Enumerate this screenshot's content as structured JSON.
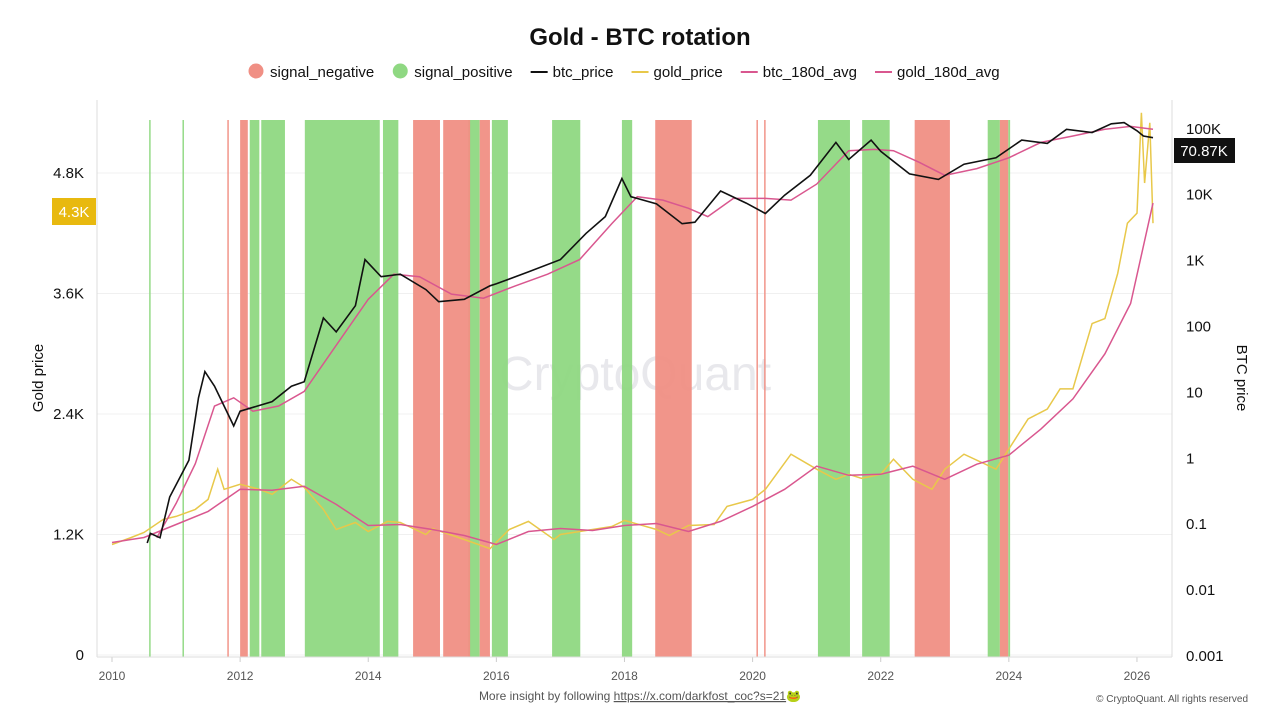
{
  "chart_data": {
    "type": "line",
    "title": "Gold - BTC rotation",
    "legend": [
      {
        "name": "signal_negative",
        "kind": "dot",
        "color": "#f08f84"
      },
      {
        "name": "signal_positive",
        "kind": "dot",
        "color": "#8fd882"
      },
      {
        "name": "btc_price",
        "kind": "line",
        "color": "#111111"
      },
      {
        "name": "gold_price",
        "kind": "line",
        "color": "#e8c84a"
      },
      {
        "name": "btc_180d_avg",
        "kind": "line",
        "color": "#d9578f"
      },
      {
        "name": "gold_180d_avg",
        "kind": "line",
        "color": "#d9578f"
      }
    ],
    "legend_position": "top-center",
    "xlim": [
      2009.8,
      2026.55
    ],
    "x_ticks": [
      "2010",
      "2012",
      "2014",
      "2016",
      "2018",
      "2020",
      "2022",
      "2024",
      "2026"
    ],
    "y_left": {
      "label": "Gold price",
      "range": [
        0,
        5570
      ],
      "ticks": [
        "0",
        "1.2K",
        "2.4K",
        "3.6K",
        "4.8K"
      ],
      "tick_values": [
        0,
        1200,
        2400,
        3600,
        4800
      ]
    },
    "y_right": {
      "label": "BTC price",
      "scale": "log",
      "range": [
        0.001,
        200000
      ],
      "ticks": [
        "0.001",
        "0.01",
        "0.1",
        "1",
        "10",
        "100",
        "1K",
        "10K",
        "100K"
      ],
      "tick_values": [
        0.001,
        0.01,
        0.1,
        1,
        10,
        100,
        1000,
        10000,
        100000
      ]
    },
    "grid": "horizontal",
    "last_values": {
      "btc_price": "70.87K",
      "gold_price": "4.3K"
    },
    "series": {
      "gold_price": [
        [
          2010.0,
          1100
        ],
        [
          2010.3,
          1170
        ],
        [
          2010.5,
          1220
        ],
        [
          2010.8,
          1350
        ],
        [
          2011.0,
          1380
        ],
        [
          2011.3,
          1450
        ],
        [
          2011.5,
          1550
        ],
        [
          2011.65,
          1850
        ],
        [
          2011.75,
          1650
        ],
        [
          2012.0,
          1700
        ],
        [
          2012.3,
          1650
        ],
        [
          2012.5,
          1600
        ],
        [
          2012.8,
          1750
        ],
        [
          2013.0,
          1670
        ],
        [
          2013.3,
          1450
        ],
        [
          2013.5,
          1250
        ],
        [
          2013.8,
          1320
        ],
        [
          2014.0,
          1230
        ],
        [
          2014.3,
          1330
        ],
        [
          2014.5,
          1320
        ],
        [
          2014.9,
          1200
        ],
        [
          2015.0,
          1260
        ],
        [
          2015.5,
          1150
        ],
        [
          2015.9,
          1060
        ],
        [
          2016.2,
          1250
        ],
        [
          2016.5,
          1330
        ],
        [
          2016.9,
          1150
        ],
        [
          2017.0,
          1200
        ],
        [
          2017.5,
          1250
        ],
        [
          2017.8,
          1280
        ],
        [
          2018.0,
          1340
        ],
        [
          2018.5,
          1250
        ],
        [
          2018.7,
          1190
        ],
        [
          2019.0,
          1290
        ],
        [
          2019.4,
          1300
        ],
        [
          2019.6,
          1480
        ],
        [
          2020.0,
          1550
        ],
        [
          2020.2,
          1650
        ],
        [
          2020.6,
          2000
        ],
        [
          2021.0,
          1850
        ],
        [
          2021.3,
          1750
        ],
        [
          2021.5,
          1800
        ],
        [
          2021.7,
          1760
        ],
        [
          2022.0,
          1800
        ],
        [
          2022.2,
          1950
        ],
        [
          2022.5,
          1750
        ],
        [
          2022.8,
          1650
        ],
        [
          2023.0,
          1850
        ],
        [
          2023.3,
          2000
        ],
        [
          2023.8,
          1850
        ],
        [
          2024.0,
          2050
        ],
        [
          2024.3,
          2350
        ],
        [
          2024.6,
          2450
        ],
        [
          2024.8,
          2650
        ],
        [
          2025.0,
          2650
        ],
        [
          2025.3,
          3300
        ],
        [
          2025.5,
          3350
        ],
        [
          2025.7,
          3800
        ],
        [
          2025.85,
          4300
        ],
        [
          2026.0,
          4400
        ],
        [
          2026.07,
          5400
        ],
        [
          2026.12,
          4700
        ],
        [
          2026.2,
          5300
        ],
        [
          2026.25,
          4300
        ]
      ],
      "gold_180d_avg": [
        [
          2010.0,
          1120
        ],
        [
          2010.5,
          1170
        ],
        [
          2011.0,
          1300
        ],
        [
          2011.5,
          1430
        ],
        [
          2012.0,
          1650
        ],
        [
          2012.5,
          1640
        ],
        [
          2013.0,
          1680
        ],
        [
          2013.5,
          1500
        ],
        [
          2014.0,
          1290
        ],
        [
          2014.5,
          1300
        ],
        [
          2015.0,
          1250
        ],
        [
          2015.5,
          1190
        ],
        [
          2016.0,
          1100
        ],
        [
          2016.5,
          1230
        ],
        [
          2017.0,
          1260
        ],
        [
          2017.5,
          1240
        ],
        [
          2018.0,
          1290
        ],
        [
          2018.5,
          1310
        ],
        [
          2019.0,
          1230
        ],
        [
          2019.5,
          1330
        ],
        [
          2020.0,
          1480
        ],
        [
          2020.5,
          1650
        ],
        [
          2021.0,
          1880
        ],
        [
          2021.5,
          1790
        ],
        [
          2022.0,
          1800
        ],
        [
          2022.5,
          1880
        ],
        [
          2023.0,
          1750
        ],
        [
          2023.5,
          1900
        ],
        [
          2024.0,
          1990
        ],
        [
          2024.5,
          2250
        ],
        [
          2025.0,
          2550
        ],
        [
          2025.5,
          3000
        ],
        [
          2025.9,
          3500
        ],
        [
          2026.25,
          4500
        ]
      ],
      "btc_price": [
        [
          2010.55,
          0.05
        ],
        [
          2010.6,
          0.07
        ],
        [
          2010.75,
          0.06
        ],
        [
          2010.9,
          0.25
        ],
        [
          2011.2,
          0.9
        ],
        [
          2011.35,
          8
        ],
        [
          2011.45,
          20
        ],
        [
          2011.6,
          12
        ],
        [
          2011.9,
          3
        ],
        [
          2012.0,
          5
        ],
        [
          2012.5,
          7
        ],
        [
          2012.8,
          12
        ],
        [
          2013.0,
          14
        ],
        [
          2013.3,
          130
        ],
        [
          2013.5,
          80
        ],
        [
          2013.8,
          200
        ],
        [
          2013.95,
          1000
        ],
        [
          2014.2,
          550
        ],
        [
          2014.5,
          600
        ],
        [
          2014.9,
          350
        ],
        [
          2015.1,
          230
        ],
        [
          2015.5,
          250
        ],
        [
          2015.9,
          400
        ],
        [
          2016.0,
          430
        ],
        [
          2016.5,
          650
        ],
        [
          2017.0,
          1000
        ],
        [
          2017.4,
          2500
        ],
        [
          2017.7,
          4500
        ],
        [
          2017.96,
          17000
        ],
        [
          2018.1,
          9000
        ],
        [
          2018.5,
          7000
        ],
        [
          2018.9,
          3500
        ],
        [
          2019.1,
          3700
        ],
        [
          2019.5,
          11000
        ],
        [
          2019.9,
          7200
        ],
        [
          2020.2,
          5000
        ],
        [
          2020.5,
          9500
        ],
        [
          2020.9,
          19000
        ],
        [
          2021.3,
          60000
        ],
        [
          2021.5,
          33000
        ],
        [
          2021.85,
          65000
        ],
        [
          2022.0,
          44000
        ],
        [
          2022.45,
          20000
        ],
        [
          2022.9,
          16500
        ],
        [
          2023.3,
          28000
        ],
        [
          2023.8,
          35000
        ],
        [
          2024.2,
          65000
        ],
        [
          2024.6,
          58000
        ],
        [
          2024.9,
          95000
        ],
        [
          2025.3,
          85000
        ],
        [
          2025.6,
          115000
        ],
        [
          2025.8,
          120000
        ],
        [
          2026.0,
          90000
        ],
        [
          2026.1,
          75000
        ],
        [
          2026.25,
          70870
        ]
      ],
      "btc_180d_avg": [
        [
          2010.7,
          0.06
        ],
        [
          2011.0,
          0.2
        ],
        [
          2011.3,
          0.8
        ],
        [
          2011.6,
          6
        ],
        [
          2011.9,
          8
        ],
        [
          2012.2,
          5
        ],
        [
          2012.6,
          6
        ],
        [
          2013.0,
          10
        ],
        [
          2013.5,
          50
        ],
        [
          2014.0,
          250
        ],
        [
          2014.4,
          600
        ],
        [
          2014.8,
          550
        ],
        [
          2015.3,
          300
        ],
        [
          2015.8,
          260
        ],
        [
          2016.3,
          400
        ],
        [
          2016.8,
          600
        ],
        [
          2017.3,
          1000
        ],
        [
          2017.8,
          3500
        ],
        [
          2018.2,
          9000
        ],
        [
          2018.6,
          8000
        ],
        [
          2019.0,
          6000
        ],
        [
          2019.3,
          4500
        ],
        [
          2019.7,
          8500
        ],
        [
          2020.2,
          8500
        ],
        [
          2020.6,
          8000
        ],
        [
          2021.0,
          14000
        ],
        [
          2021.5,
          45000
        ],
        [
          2021.9,
          47000
        ],
        [
          2022.2,
          45000
        ],
        [
          2022.6,
          30000
        ],
        [
          2023.0,
          19000
        ],
        [
          2023.5,
          24000
        ],
        [
          2024.0,
          35000
        ],
        [
          2024.5,
          60000
        ],
        [
          2025.0,
          75000
        ],
        [
          2025.5,
          95000
        ],
        [
          2025.9,
          105000
        ],
        [
          2026.25,
          95000
        ]
      ]
    },
    "signal_positive": [
      [
        2010.58,
        2010.6
      ],
      [
        2011.1,
        2011.12
      ],
      [
        2012.15,
        2012.3
      ],
      [
        2012.33,
        2012.7
      ],
      [
        2013.01,
        2014.18
      ],
      [
        2014.23,
        2014.47
      ],
      [
        2015.56,
        2015.74
      ],
      [
        2015.93,
        2016.18
      ],
      [
        2016.87,
        2017.31
      ],
      [
        2017.96,
        2018.12
      ],
      [
        2021.02,
        2021.52
      ],
      [
        2021.71,
        2022.14
      ],
      [
        2023.67,
        2023.86
      ],
      [
        2023.99,
        2024.02
      ]
    ],
    "signal_negative": [
      [
        2011.8,
        2011.82
      ],
      [
        2012.0,
        2012.12
      ],
      [
        2014.7,
        2015.12
      ],
      [
        2015.17,
        2015.59
      ],
      [
        2015.74,
        2015.9
      ],
      [
        2018.48,
        2019.05
      ],
      [
        2020.06,
        2020.08
      ],
      [
        2020.18,
        2020.2
      ],
      [
        2022.53,
        2023.08
      ],
      [
        2023.86,
        2023.99
      ]
    ]
  },
  "watermark": "CryptoQuant",
  "footer": {
    "prefix": "More insight by following ",
    "link": "https://x.com/darkfost_coc?s=21",
    "emoji": "🐸",
    "copyright": "© CryptoQuant. All rights reserved"
  }
}
